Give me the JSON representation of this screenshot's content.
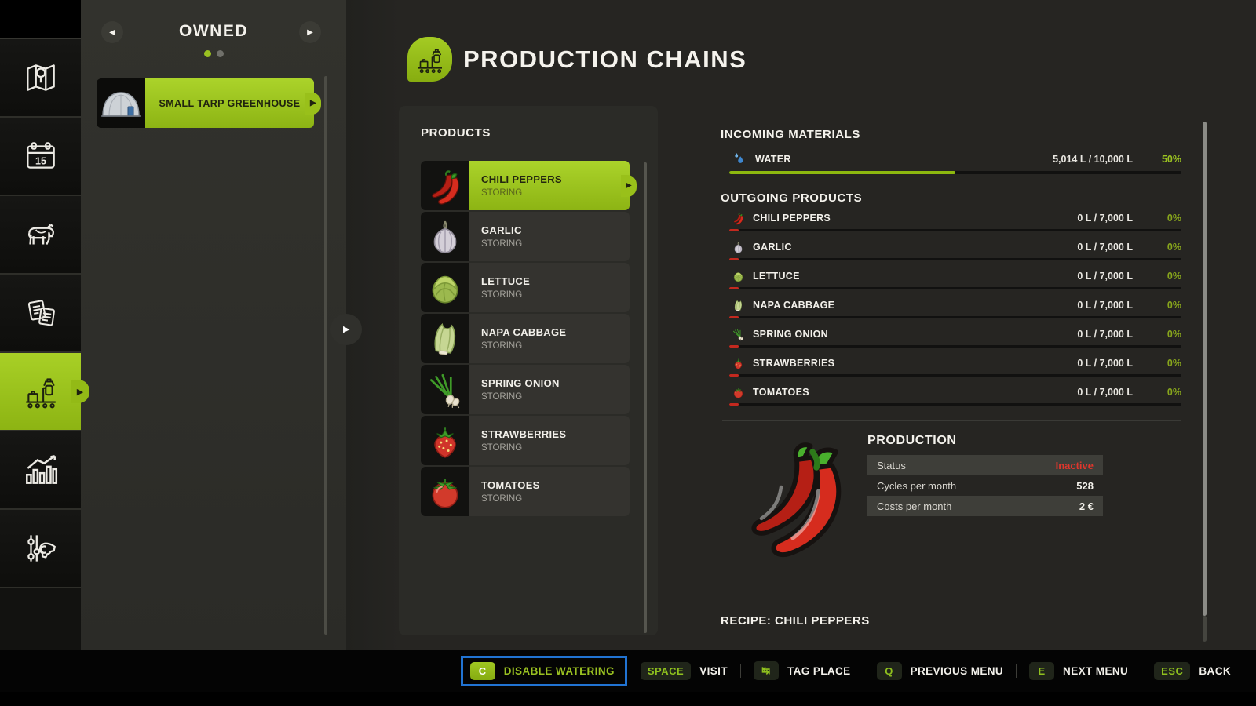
{
  "colors": {
    "accent_green": "#9ac121",
    "status_red": "#e0362c",
    "focus_blue": "#2173d2",
    "water_blue": "#4b93d6"
  },
  "sidebar": {
    "items": [
      {
        "name": "sidebar-item-map",
        "icon": "map-icon",
        "selected": false
      },
      {
        "name": "sidebar-item-calendar",
        "icon": "calendar-icon",
        "selected": false
      },
      {
        "name": "sidebar-item-animals",
        "icon": "cow-icon",
        "selected": false
      },
      {
        "name": "sidebar-item-contracts",
        "icon": "documents-icon",
        "selected": false
      },
      {
        "name": "sidebar-item-production-chains",
        "icon": "production-icon",
        "selected": true
      },
      {
        "name": "sidebar-item-statistics",
        "icon": "statistics-icon",
        "selected": false
      },
      {
        "name": "sidebar-item-settings",
        "icon": "settings-icon",
        "selected": false
      }
    ]
  },
  "owned_panel": {
    "title": "OWNED",
    "pages": [
      {
        "active": true
      },
      {
        "active": false
      }
    ],
    "prev_icon": "◀",
    "next_icon": "▶",
    "selected_item": {
      "label": "SMALL TARP GREENHOUSE",
      "icon": "greenhouse-thumbnail"
    }
  },
  "header": {
    "title": "PRODUCTION CHAINS",
    "icon": "production-icon"
  },
  "products": {
    "title": "PRODUCTS",
    "items": [
      {
        "name": "CHILI PEPPERS",
        "status": "STORING",
        "icon": "chili-icon",
        "selected": true
      },
      {
        "name": "GARLIC",
        "status": "STORING",
        "icon": "garlic-icon",
        "selected": false
      },
      {
        "name": "LETTUCE",
        "status": "STORING",
        "icon": "lettuce-icon",
        "selected": false
      },
      {
        "name": "NAPA CABBAGE",
        "status": "STORING",
        "icon": "napa-cabbage-icon",
        "selected": false
      },
      {
        "name": "SPRING ONION",
        "status": "STORING",
        "icon": "spring-onion-icon",
        "selected": false
      },
      {
        "name": "STRAWBERRIES",
        "status": "STORING",
        "icon": "strawberry-icon",
        "selected": false
      },
      {
        "name": "TOMATOES",
        "status": "STORING",
        "icon": "tomato-icon",
        "selected": false
      }
    ]
  },
  "incoming": {
    "title": "INCOMING MATERIALS",
    "items": [
      {
        "name": "WATER",
        "icon": "water-icon",
        "amount": "5,014 L / 10,000 L",
        "percent": "50%",
        "fill": 50
      }
    ]
  },
  "outgoing": {
    "title": "OUTGOING PRODUCTS",
    "items": [
      {
        "name": "CHILI PEPPERS",
        "icon": "chili-icon",
        "amount": "0 L / 7,000 L",
        "percent": "0%",
        "fill": 0
      },
      {
        "name": "GARLIC",
        "icon": "garlic-icon",
        "amount": "0 L / 7,000 L",
        "percent": "0%",
        "fill": 0
      },
      {
        "name": "LETTUCE",
        "icon": "lettuce-icon",
        "amount": "0 L / 7,000 L",
        "percent": "0%",
        "fill": 0
      },
      {
        "name": "NAPA CABBAGE",
        "icon": "napa-cabbage-icon",
        "amount": "0 L / 7,000 L",
        "percent": "0%",
        "fill": 0
      },
      {
        "name": "SPRING ONION",
        "icon": "spring-onion-icon",
        "amount": "0 L / 7,000 L",
        "percent": "0%",
        "fill": 0
      },
      {
        "name": "STRAWBERRIES",
        "icon": "strawberry-icon",
        "amount": "0 L / 7,000 L",
        "percent": "0%",
        "fill": 0
      },
      {
        "name": "TOMATOES",
        "icon": "tomato-icon",
        "amount": "0 L / 7,000 L",
        "percent": "0%",
        "fill": 0
      }
    ]
  },
  "production": {
    "title": "PRODUCTION",
    "illustration": "chili-peppers-illustration",
    "rows": [
      {
        "label": "Status",
        "value": "Inactive",
        "red": true,
        "shaded": true
      },
      {
        "label": "Cycles per month",
        "value": "528",
        "red": false,
        "shaded": false
      },
      {
        "label": "Costs per month",
        "value": "2 €",
        "red": false,
        "shaded": true
      }
    ]
  },
  "recipe": {
    "label": "RECIPE: CHILI PEPPERS"
  },
  "keybinds": [
    {
      "key": "C",
      "label": "DISABLE WATERING",
      "green_key": true,
      "highlighted": true,
      "sep": false
    },
    {
      "key": "SPACE",
      "label": "VISIT",
      "green_key": false,
      "highlighted": false,
      "sep": false
    },
    {
      "key": "↹",
      "label": "TAG PLACE",
      "green_key": false,
      "highlighted": false,
      "sep": true
    },
    {
      "key": "Q",
      "label": "PREVIOUS MENU",
      "green_key": false,
      "highlighted": false,
      "sep": true
    },
    {
      "key": "E",
      "label": "NEXT MENU",
      "green_key": false,
      "highlighted": false,
      "sep": true
    },
    {
      "key": "ESC",
      "label": "BACK",
      "green_key": false,
      "highlighted": false,
      "sep": true
    }
  ]
}
